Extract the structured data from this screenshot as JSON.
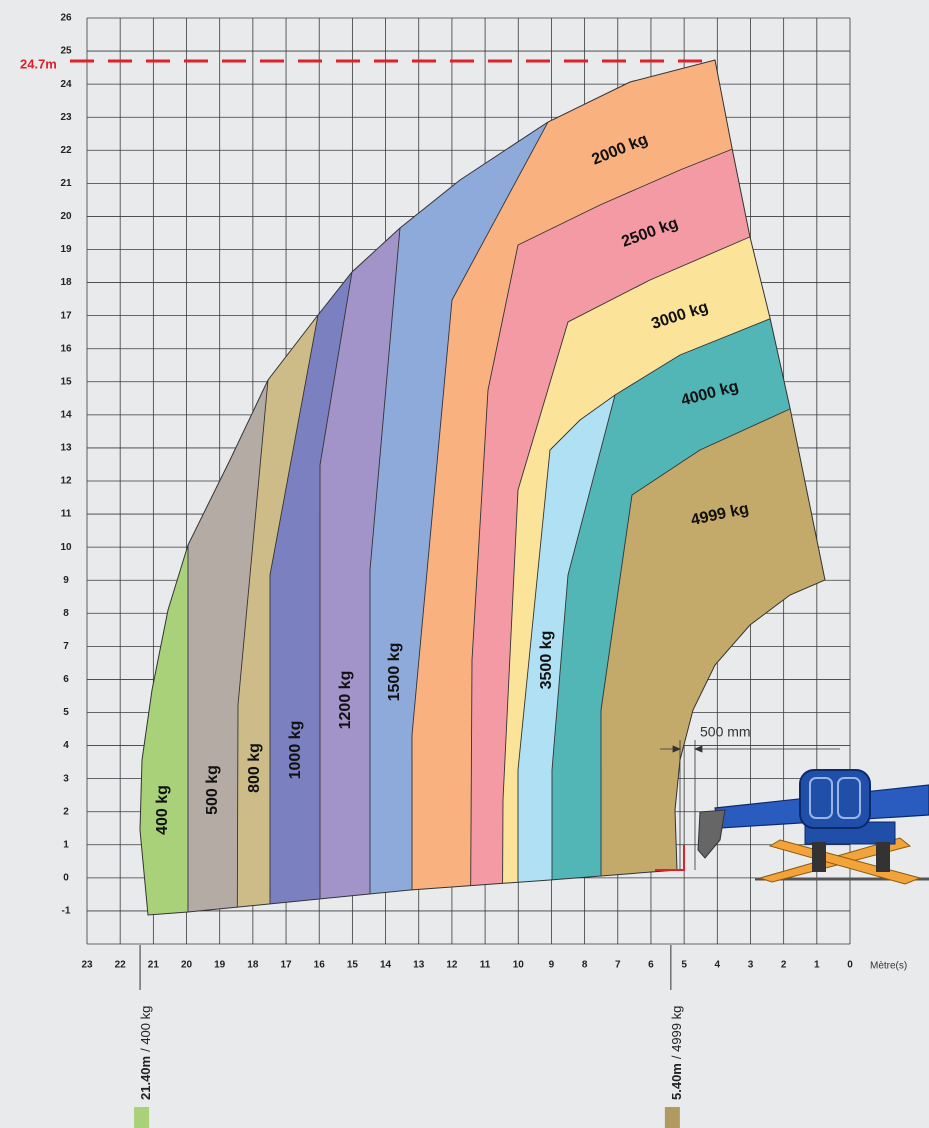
{
  "chart_data": {
    "type": "load-chart",
    "xlim": [
      23,
      0
    ],
    "ylim": [
      -2,
      26
    ],
    "xticks": [
      23,
      22,
      21,
      20,
      19,
      18,
      17,
      16,
      15,
      14,
      13,
      12,
      11,
      10,
      9,
      8,
      7,
      6,
      5,
      4,
      3,
      2,
      1,
      0
    ],
    "yticks": [
      -1,
      0,
      1,
      2,
      3,
      4,
      5,
      6,
      7,
      8,
      9,
      10,
      11,
      12,
      13,
      14,
      15,
      16,
      17,
      18,
      19,
      20,
      21,
      22,
      23,
      24,
      25,
      26
    ],
    "x_unit": "Mètre(s)",
    "grid": true,
    "reference_line": {
      "value": 24.7,
      "label": "24.7m"
    },
    "zones": [
      "400 kg",
      "500 kg",
      "800 kg",
      "1000 kg",
      "1200 kg",
      "1500 kg",
      "2000 kg",
      "2500 kg",
      "3000 kg",
      "3500 kg",
      "4000 kg",
      "4999 kg"
    ],
    "annotation": "500 mm",
    "markers": [
      {
        "position": {
          "value": 21.4,
          "label": "21.40m"
        },
        "load": "/ 400 kg",
        "color": "#a8d179"
      },
      {
        "position": {
          "value": 5.4,
          "label": "5.40m"
        },
        "load": "/ 4999 kg",
        "color": "#b09a60"
      }
    ]
  }
}
